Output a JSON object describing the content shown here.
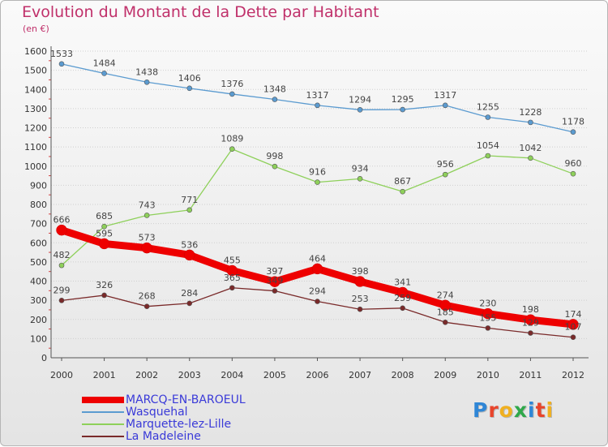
{
  "title": "Evolution du Montant de la Dette par Habitant",
  "subtitle": "(en €)",
  "logo": {
    "text": "Proxiti",
    "letter_colors": [
      "#2f86d6",
      "#e8442b",
      "#f0b020",
      "#2fa84a",
      "#2f86d6",
      "#e8442b",
      "#f0b020"
    ]
  },
  "colors": {
    "title": "#c0306a",
    "axis_labels": "#333333",
    "legend_text": "#3a3ad8",
    "grid": "#cfcfcf"
  },
  "chart_data": {
    "type": "line",
    "x": [
      "2000",
      "2001",
      "2002",
      "2003",
      "2004",
      "2005",
      "2006",
      "2007",
      "2008",
      "2009",
      "2010",
      "2011",
      "2012"
    ],
    "ylim": [
      0,
      1600
    ],
    "yticks": [
      "0",
      "100",
      "200",
      "300",
      "400",
      "500",
      "600",
      "700",
      "800",
      "900",
      "1000",
      "1100",
      "1200",
      "1300",
      "1400",
      "1500",
      "1600"
    ],
    "grid": true,
    "legend_position": "bottom-left",
    "series": [
      {
        "name": "MARCQ-EN-BAROEUL",
        "color": "#ee0000",
        "values": [
          666,
          595,
          573,
          536,
          455,
          397,
          464,
          398,
          341,
          274,
          230,
          198,
          174
        ],
        "labels": [
          "666",
          "595",
          "573",
          "536",
          "455",
          "397",
          "464",
          "398",
          "341",
          "274",
          "230",
          "198",
          "174"
        ]
      },
      {
        "name": "Wasquehal",
        "color": "#5b9bd0",
        "values": [
          1533,
          1484,
          1438,
          1406,
          1376,
          1348,
          1317,
          1294,
          1295,
          1317,
          1255,
          1228,
          1178
        ],
        "labels": [
          "1533",
          "1484",
          "1438",
          "1406",
          "1376",
          "1348",
          "1317",
          "1294",
          "1295",
          "1317",
          "1255",
          "1228",
          "1178"
        ]
      },
      {
        "name": "Marquette-lez-Lille",
        "color": "#8ed05a",
        "values": [
          482,
          685,
          743,
          771,
          1089,
          998,
          916,
          934,
          867,
          956,
          1054,
          1042,
          960
        ],
        "labels": [
          "482",
          "685",
          "743",
          "771",
          "1089",
          "998",
          "916",
          "934",
          "867",
          "956",
          "1054",
          "1042",
          "960"
        ]
      },
      {
        "name": "La Madeleine",
        "color": "#7a2a2a",
        "values": [
          299,
          326,
          268,
          284,
          365,
          349,
          294,
          253,
          259,
          185,
          155,
          129,
          107
        ],
        "labels": [
          "299",
          "326",
          "268",
          "284",
          "365",
          "349",
          "294",
          "253",
          "259",
          "185",
          "155",
          "129",
          "107"
        ]
      }
    ]
  }
}
